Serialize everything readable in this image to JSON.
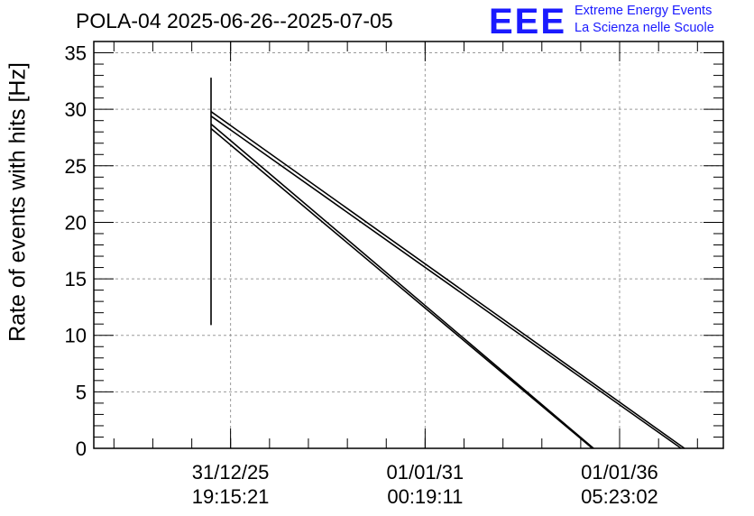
{
  "title": "POLA-04 2025-06-26--2025-07-05",
  "logo": {
    "mark": "EEE",
    "line1": "Extreme Energy Events",
    "line2": "La Scienza nelle Scuole",
    "color": "#1a1aff"
  },
  "chart_data": {
    "type": "line",
    "ylabel": "Rate of events with hits [Hz]",
    "ylim": [
      0,
      36
    ],
    "yticks": [
      0,
      5,
      10,
      15,
      20,
      25,
      30,
      35
    ],
    "grid": true,
    "xticks": [
      {
        "date": "31/12/25",
        "time": "19:15:21"
      },
      {
        "date": "01/01/31",
        "time": "00:19:11"
      },
      {
        "date": "01/01/36",
        "time": "05:23:02"
      }
    ],
    "xlim": [
      "2022-06-26",
      "2038-09-01"
    ],
    "series": [
      {
        "values": [
          {
            "x": "2025-07-01",
            "y": 32.8
          },
          {
            "x": "2025-07-01",
            "y": 10.9
          },
          {
            "x": "2025-07-01",
            "y": 31.5
          },
          {
            "x": "2025-07-01",
            "y": 14.0
          }
        ]
      },
      {
        "values": [
          {
            "x": "2025-07-01",
            "y": 29.8
          },
          {
            "x": "2037-09-01",
            "y": 0
          }
        ]
      },
      {
        "values": [
          {
            "x": "2025-07-01",
            "y": 29.4
          },
          {
            "x": "2037-08-01",
            "y": 0
          }
        ]
      },
      {
        "values": [
          {
            "x": "2025-07-01",
            "y": 28.7
          },
          {
            "x": "2035-05-01",
            "y": 0
          }
        ]
      },
      {
        "values": [
          {
            "x": "2025-07-01",
            "y": 28.3
          },
          {
            "x": "2035-04-20",
            "y": 0
          }
        ]
      }
    ],
    "line_color": "#000000",
    "grid_color": "#9a9a9a"
  }
}
